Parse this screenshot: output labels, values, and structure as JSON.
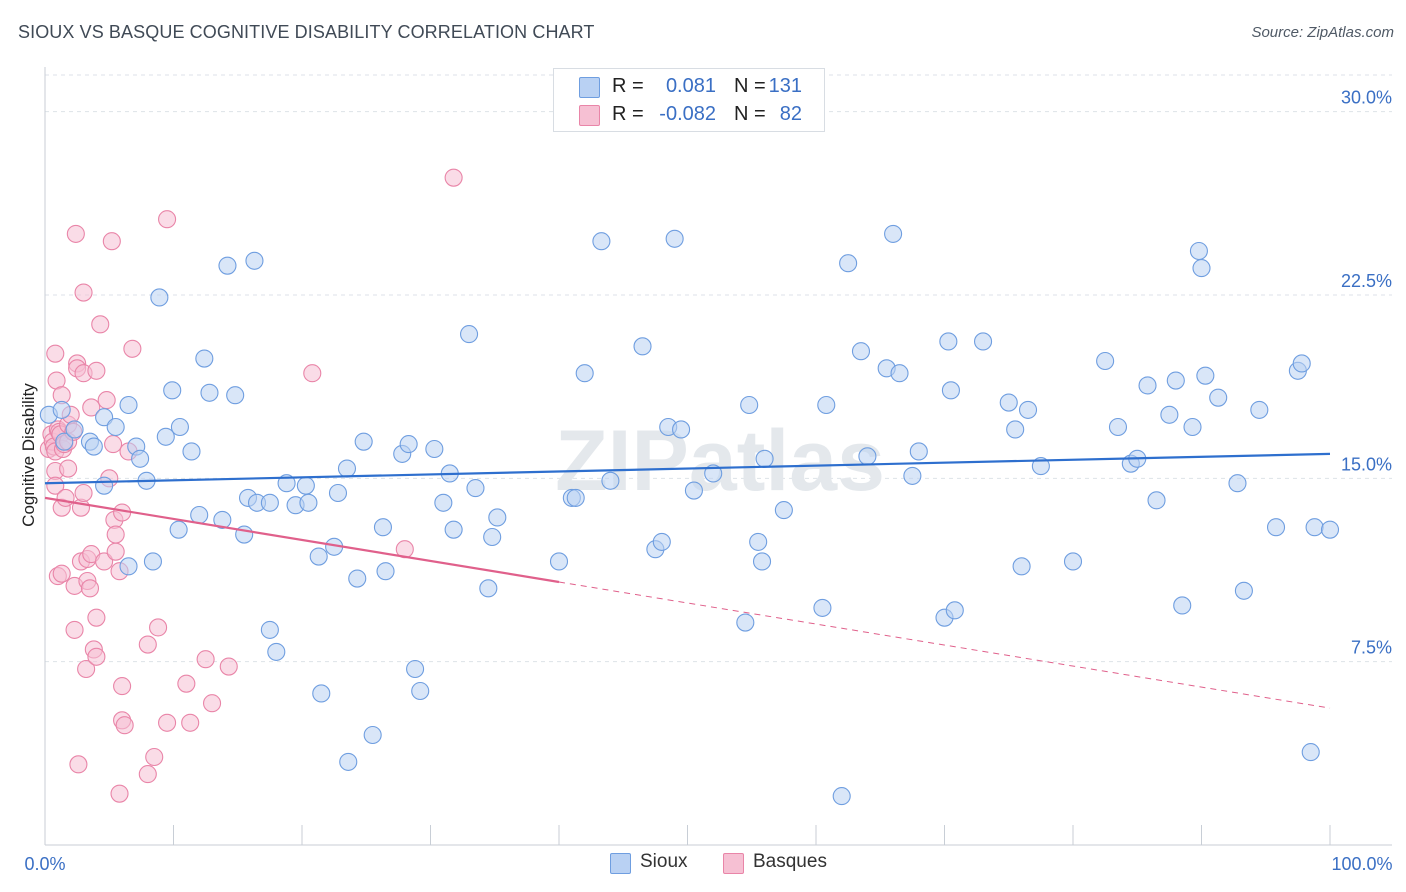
{
  "title": "SIOUX VS BASQUE COGNITIVE DISABILITY CORRELATION CHART",
  "source": "Source: ZipAtlas.com",
  "watermark": "ZIPatlas",
  "colors": {
    "sioux_fill": "#b9d1f3",
    "sioux_stroke": "#6f9ee0",
    "sioux_line": "#2e6fce",
    "basques_fill": "#f6c0d3",
    "basques_stroke": "#e985a8",
    "basques_line": "#e0608b",
    "axis_text": "#3a6fc4",
    "grid": "#dde2e8"
  },
  "legend": {
    "rows": [
      {
        "r_label": "R =",
        "r_value": "0.081",
        "n_label": "N =",
        "n_value": "131",
        "swatch": "sioux"
      },
      {
        "r_label": "R =",
        "r_value": "-0.082",
        "n_label": "N =",
        "n_value": "82",
        "swatch": "basques"
      }
    ]
  },
  "bottom_legend": [
    {
      "label": "Sioux",
      "swatch": "sioux"
    },
    {
      "label": "Basques",
      "swatch": "basques"
    }
  ],
  "chart_data": {
    "type": "scatter",
    "title": "SIOUX VS BASQUE COGNITIVE DISABILITY CORRELATION CHART",
    "xlabel": "",
    "ylabel": "Cognitive Disability",
    "xlim": [
      0,
      100
    ],
    "ylim": [
      0,
      31.5
    ],
    "x_tick_labels": [
      "0.0%",
      "100.0%"
    ],
    "y_ticks": [
      7.5,
      15.0,
      22.5,
      30.0
    ],
    "y_tick_labels": [
      "7.5%",
      "15.0%",
      "22.5%",
      "30.0%"
    ],
    "grid": true,
    "legend_position": "top-center",
    "series": [
      {
        "name": "Sioux",
        "color": "sioux",
        "trend": {
          "x": [
            0,
            100
          ],
          "y": [
            14.8,
            16.0
          ],
          "dashed_from": null
        },
        "points": [
          [
            0.3,
            17.6
          ],
          [
            1.3,
            17.8
          ],
          [
            1.5,
            16.5
          ],
          [
            2.3,
            17.0
          ],
          [
            3.5,
            16.5
          ],
          [
            3.8,
            16.3
          ],
          [
            4.6,
            14.7
          ],
          [
            4.6,
            17.5
          ],
          [
            5.5,
            17.1
          ],
          [
            6.5,
            11.4
          ],
          [
            6.5,
            18.0
          ],
          [
            7.1,
            16.3
          ],
          [
            7.4,
            15.8
          ],
          [
            7.9,
            14.9
          ],
          [
            8.4,
            11.6
          ],
          [
            8.9,
            22.4
          ],
          [
            9.4,
            16.7
          ],
          [
            9.9,
            18.6
          ],
          [
            10.4,
            12.9
          ],
          [
            10.5,
            17.1
          ],
          [
            11.4,
            16.1
          ],
          [
            12.0,
            13.5
          ],
          [
            12.4,
            19.9
          ],
          [
            12.8,
            18.5
          ],
          [
            13.8,
            13.3
          ],
          [
            14.2,
            23.7
          ],
          [
            14.8,
            18.4
          ],
          [
            15.5,
            12.7
          ],
          [
            15.8,
            14.2
          ],
          [
            16.3,
            23.9
          ],
          [
            16.5,
            14.0
          ],
          [
            17.5,
            14.0
          ],
          [
            17.5,
            8.8
          ],
          [
            18.0,
            7.9
          ],
          [
            18.8,
            14.8
          ],
          [
            19.5,
            13.9
          ],
          [
            20.3,
            14.7
          ],
          [
            20.5,
            14.0
          ],
          [
            21.3,
            11.8
          ],
          [
            21.5,
            6.2
          ],
          [
            22.5,
            12.2
          ],
          [
            22.8,
            14.4
          ],
          [
            23.5,
            15.4
          ],
          [
            23.6,
            3.4
          ],
          [
            24.3,
            10.9
          ],
          [
            24.8,
            16.5
          ],
          [
            25.5,
            4.5
          ],
          [
            26.3,
            13.0
          ],
          [
            26.5,
            11.2
          ],
          [
            27.8,
            16.0
          ],
          [
            28.3,
            16.4
          ],
          [
            28.8,
            7.2
          ],
          [
            29.2,
            6.3
          ],
          [
            30.3,
            16.2
          ],
          [
            31.0,
            14.0
          ],
          [
            31.5,
            15.2
          ],
          [
            31.8,
            12.9
          ],
          [
            33.0,
            20.9
          ],
          [
            33.5,
            14.6
          ],
          [
            34.5,
            10.5
          ],
          [
            34.8,
            12.6
          ],
          [
            35.2,
            13.4
          ],
          [
            40.0,
            11.6
          ],
          [
            41.0,
            14.2
          ],
          [
            41.3,
            14.2
          ],
          [
            42.0,
            19.3
          ],
          [
            43.3,
            24.7
          ],
          [
            44.0,
            14.9
          ],
          [
            46.5,
            20.4
          ],
          [
            47.5,
            12.1
          ],
          [
            48.0,
            12.4
          ],
          [
            48.5,
            17.1
          ],
          [
            49.0,
            24.8
          ],
          [
            49.5,
            17.0
          ],
          [
            50.5,
            14.5
          ],
          [
            52.0,
            15.2
          ],
          [
            54.5,
            9.1
          ],
          [
            54.8,
            18.0
          ],
          [
            55.5,
            12.4
          ],
          [
            55.8,
            11.6
          ],
          [
            56.0,
            15.8
          ],
          [
            57.5,
            13.7
          ],
          [
            60.5,
            9.7
          ],
          [
            60.8,
            18.0
          ],
          [
            62.0,
            2.0
          ],
          [
            62.5,
            23.8
          ],
          [
            63.5,
            20.2
          ],
          [
            64.0,
            15.9
          ],
          [
            65.5,
            19.5
          ],
          [
            66.0,
            25.0
          ],
          [
            66.5,
            19.3
          ],
          [
            67.5,
            15.1
          ],
          [
            68.0,
            16.1
          ],
          [
            70.0,
            9.3
          ],
          [
            70.3,
            20.6
          ],
          [
            70.5,
            18.6
          ],
          [
            70.8,
            9.6
          ],
          [
            73.0,
            20.6
          ],
          [
            75.0,
            18.1
          ],
          [
            75.5,
            17.0
          ],
          [
            76.0,
            11.4
          ],
          [
            76.5,
            17.8
          ],
          [
            77.5,
            15.5
          ],
          [
            80.0,
            11.6
          ],
          [
            82.5,
            19.8
          ],
          [
            83.5,
            17.1
          ],
          [
            84.5,
            15.6
          ],
          [
            85.0,
            15.8
          ],
          [
            85.8,
            18.8
          ],
          [
            86.5,
            14.1
          ],
          [
            87.5,
            17.6
          ],
          [
            88.0,
            19.0
          ],
          [
            88.5,
            9.8
          ],
          [
            89.3,
            17.1
          ],
          [
            89.8,
            24.3
          ],
          [
            90.0,
            23.6
          ],
          [
            90.3,
            19.2
          ],
          [
            91.3,
            18.3
          ],
          [
            92.8,
            14.8
          ],
          [
            93.3,
            10.4
          ],
          [
            94.5,
            17.8
          ],
          [
            95.8,
            13.0
          ],
          [
            97.5,
            19.4
          ],
          [
            97.8,
            19.7
          ],
          [
            98.5,
            3.8
          ],
          [
            98.8,
            13.0
          ],
          [
            100,
            12.9
          ]
        ]
      },
      {
        "name": "Basques",
        "color": "basques",
        "trend": {
          "x": [
            0,
            100
          ],
          "y": [
            14.2,
            5.6
          ],
          "dashed_from": 40
        },
        "points": [
          [
            0.3,
            16.2
          ],
          [
            0.5,
            16.8
          ],
          [
            0.6,
            16.5
          ],
          [
            0.7,
            16.3
          ],
          [
            0.8,
            20.1
          ],
          [
            0.8,
            16.1
          ],
          [
            0.8,
            15.3
          ],
          [
            0.8,
            14.7
          ],
          [
            0.9,
            19.0
          ],
          [
            1.0,
            17.0
          ],
          [
            1.0,
            11.0
          ],
          [
            1.1,
            16.9
          ],
          [
            1.2,
            16.8
          ],
          [
            1.3,
            13.8
          ],
          [
            1.3,
            11.1
          ],
          [
            1.3,
            18.4
          ],
          [
            1.4,
            16.2
          ],
          [
            1.5,
            16.4
          ],
          [
            1.6,
            14.2
          ],
          [
            1.8,
            17.2
          ],
          [
            1.8,
            16.5
          ],
          [
            1.8,
            15.4
          ],
          [
            2.0,
            17.6
          ],
          [
            2.2,
            16.9
          ],
          [
            2.3,
            10.6
          ],
          [
            2.3,
            8.8
          ],
          [
            2.4,
            25.0
          ],
          [
            2.5,
            19.7
          ],
          [
            2.5,
            19.5
          ],
          [
            2.6,
            3.3
          ],
          [
            2.8,
            13.8
          ],
          [
            2.8,
            11.6
          ],
          [
            3.0,
            14.4
          ],
          [
            3.0,
            19.3
          ],
          [
            3.0,
            22.6
          ],
          [
            3.2,
            7.2
          ],
          [
            3.3,
            11.7
          ],
          [
            3.3,
            10.8
          ],
          [
            3.5,
            10.5
          ],
          [
            3.6,
            11.9
          ],
          [
            3.6,
            17.9
          ],
          [
            3.8,
            8.0
          ],
          [
            4.0,
            7.7
          ],
          [
            4.0,
            19.4
          ],
          [
            4.0,
            9.3
          ],
          [
            4.3,
            21.3
          ],
          [
            4.6,
            11.6
          ],
          [
            4.8,
            18.2
          ],
          [
            5.0,
            15.0
          ],
          [
            5.2,
            24.7
          ],
          [
            5.3,
            16.4
          ],
          [
            5.4,
            13.3
          ],
          [
            5.5,
            12.7
          ],
          [
            5.5,
            12.0
          ],
          [
            5.8,
            11.2
          ],
          [
            5.8,
            2.1
          ],
          [
            6.0,
            13.6
          ],
          [
            6.0,
            6.5
          ],
          [
            6.0,
            5.1
          ],
          [
            6.2,
            4.9
          ],
          [
            6.5,
            16.1
          ],
          [
            6.8,
            20.3
          ],
          [
            8.0,
            8.2
          ],
          [
            8.0,
            2.9
          ],
          [
            8.5,
            3.6
          ],
          [
            8.8,
            8.9
          ],
          [
            9.5,
            5.0
          ],
          [
            9.5,
            25.6
          ],
          [
            11.0,
            6.6
          ],
          [
            11.3,
            5.0
          ],
          [
            12.5,
            7.6
          ],
          [
            13.0,
            5.8
          ],
          [
            14.3,
            7.3
          ],
          [
            20.8,
            19.3
          ],
          [
            28.0,
            12.1
          ],
          [
            31.8,
            27.3
          ]
        ]
      }
    ]
  }
}
